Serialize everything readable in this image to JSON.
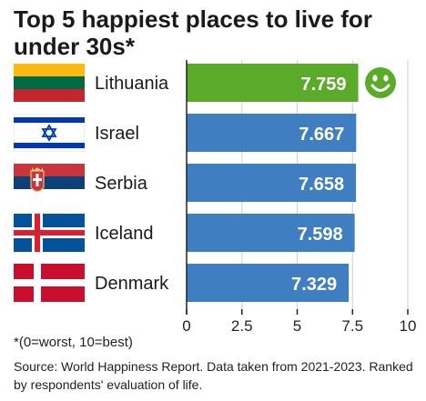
{
  "title": "Top 5 happiest places to live for under 30s*",
  "note": "*(0=worst, 10=best)",
  "source": "Source: World Happiness Report. Data taken from 2021-2023. Ranked by respondents' evaluation of life.",
  "chart_data": {
    "type": "bar",
    "orientation": "horizontal",
    "categories": [
      "Lithuania",
      "Israel",
      "Serbia",
      "Iceland",
      "Denmark"
    ],
    "values": [
      7.759,
      7.667,
      7.658,
      7.598,
      7.329
    ],
    "value_labels": [
      "7.759",
      "7.667",
      "7.658",
      "7.598",
      "7.329"
    ],
    "xlim": [
      0,
      10
    ],
    "ticks": [
      0,
      2.5,
      5,
      7.5,
      10
    ],
    "tick_labels": [
      "0",
      "2.5",
      "5",
      "7.5",
      "10"
    ],
    "grid": true,
    "colors": {
      "highlight": "#5aab2a",
      "bar": "#3f7fc1",
      "grid": "#cfcfcf",
      "axis": "#222222"
    },
    "highlight_index": 0,
    "highlight_icon": "smiley-face-icon",
    "flags": [
      "lithuania-flag-icon",
      "israel-flag-icon",
      "serbia-flag-icon",
      "iceland-flag-icon",
      "denmark-flag-icon"
    ]
  }
}
